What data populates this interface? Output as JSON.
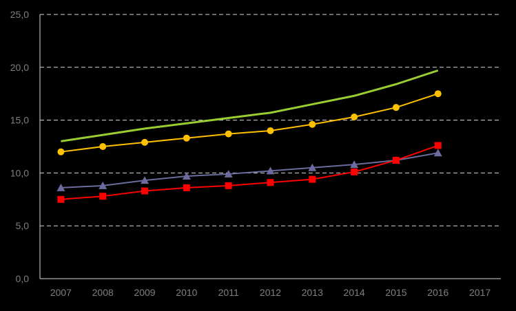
{
  "chart_data": {
    "type": "line",
    "title": "",
    "xlabel": "",
    "ylabel": "",
    "categories": [
      "2007",
      "2008",
      "2009",
      "2010",
      "2011",
      "2012",
      "2013",
      "2014",
      "2015",
      "2016",
      "2017"
    ],
    "ylim": [
      0,
      25
    ],
    "yticks": [
      "0,0",
      "5,0",
      "10,0",
      "15,0",
      "20,0",
      "25,0"
    ],
    "grid": "horizontal dashed",
    "legend": "none",
    "series": [
      {
        "color": "#9acd32",
        "marker": "none",
        "values": [
          13.0,
          13.6,
          14.2,
          14.7,
          15.2,
          15.7,
          16.5,
          17.3,
          18.4,
          19.7,
          null
        ]
      },
      {
        "color": "#ffc000",
        "marker": "circle",
        "values": [
          12.0,
          12.5,
          12.9,
          13.3,
          13.7,
          14.0,
          14.6,
          15.3,
          16.2,
          17.5,
          null
        ]
      },
      {
        "color": "#6b6b9e",
        "marker": "triangle",
        "values": [
          8.6,
          8.8,
          9.3,
          9.7,
          9.9,
          10.2,
          10.5,
          10.8,
          11.2,
          11.9,
          null
        ]
      },
      {
        "color": "#ff0000",
        "marker": "square",
        "values": [
          7.5,
          7.8,
          8.3,
          8.6,
          8.8,
          9.1,
          9.4,
          10.1,
          11.2,
          12.6,
          null
        ]
      }
    ]
  }
}
